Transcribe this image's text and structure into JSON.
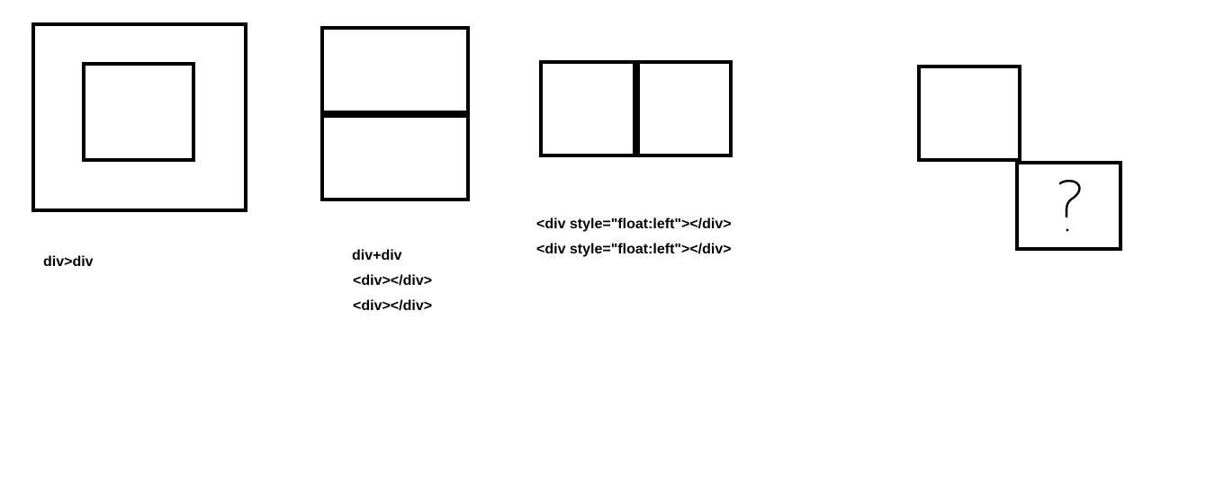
{
  "diagram": {
    "nested": {
      "label": "div>div"
    },
    "stacked": {
      "label": "div+div",
      "code_lines": [
        "<div></div>",
        "<div></div>"
      ]
    },
    "floated": {
      "code_lines": [
        "<div style=\"float:left\"></div>",
        "<div style=\"float:left\"></div>"
      ]
    },
    "question": {
      "mark": "?"
    }
  }
}
